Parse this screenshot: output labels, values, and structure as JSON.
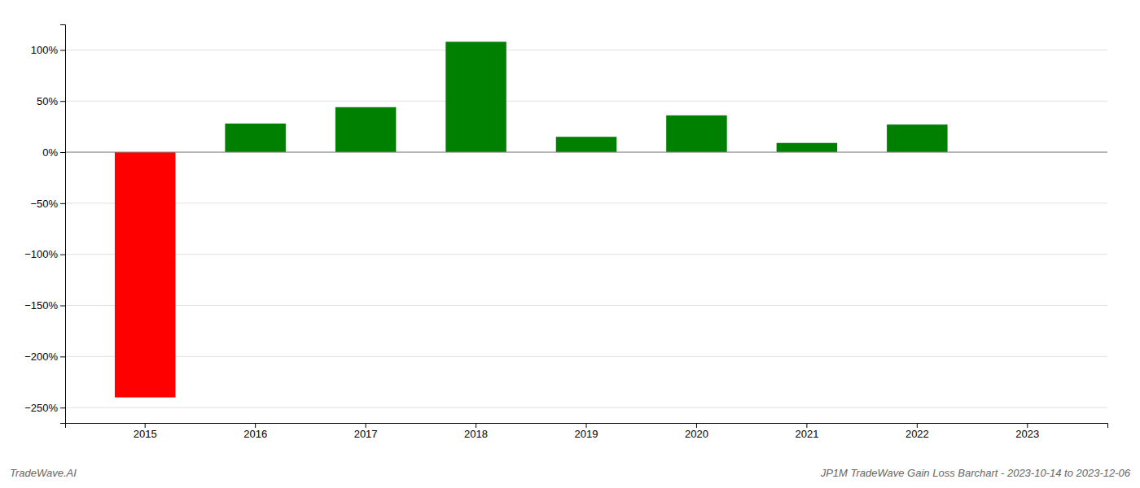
{
  "chart_data": {
    "type": "bar",
    "title": "JP1M TradeWave Gain Loss Barchart - 2023-10-14 to 2023-12-06",
    "annotations": [
      "TradeWave.AI"
    ],
    "categories": [
      "2015",
      "2016",
      "2017",
      "2018",
      "2019",
      "2020",
      "2021",
      "2022",
      "2023"
    ],
    "values": [
      -2.4,
      0.28,
      0.44,
      1.08,
      0.15,
      0.36,
      0.09,
      0.27,
      0.0
    ],
    "colors": [
      "#ff0000",
      "#008000",
      "#008000",
      "#008000",
      "#008000",
      "#008000",
      "#008000",
      "#008000",
      "#008000"
    ],
    "ylim": [
      -2.65,
      1.25
    ],
    "yticks": [
      {
        "value": -2.5,
        "label": "−250%"
      },
      {
        "value": -2.0,
        "label": "−200%"
      },
      {
        "value": -1.5,
        "label": "−150%"
      },
      {
        "value": -1.0,
        "label": "−100%"
      },
      {
        "value": -0.5,
        "label": "−50%"
      },
      {
        "value": 0.0,
        "label": "0%"
      },
      {
        "value": 0.5,
        "label": "50%"
      },
      {
        "value": 1.0,
        "label": "100%"
      }
    ],
    "grid": true
  }
}
